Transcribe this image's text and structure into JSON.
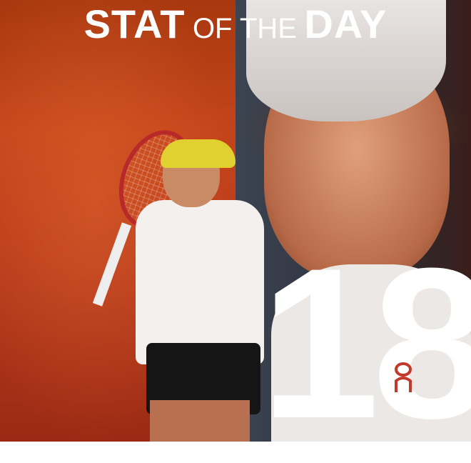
{
  "title": {
    "word1": "STAT",
    "word2": "OF THE",
    "word3": "DAY"
  },
  "stat": {
    "value": "18"
  },
  "logos": {
    "brand": "On"
  },
  "colors": {
    "left_background": "#c4441a",
    "right_background": "#2a2e38",
    "text": "#ffffff",
    "racket": "#b82a2a",
    "visor": "#e0d030"
  }
}
